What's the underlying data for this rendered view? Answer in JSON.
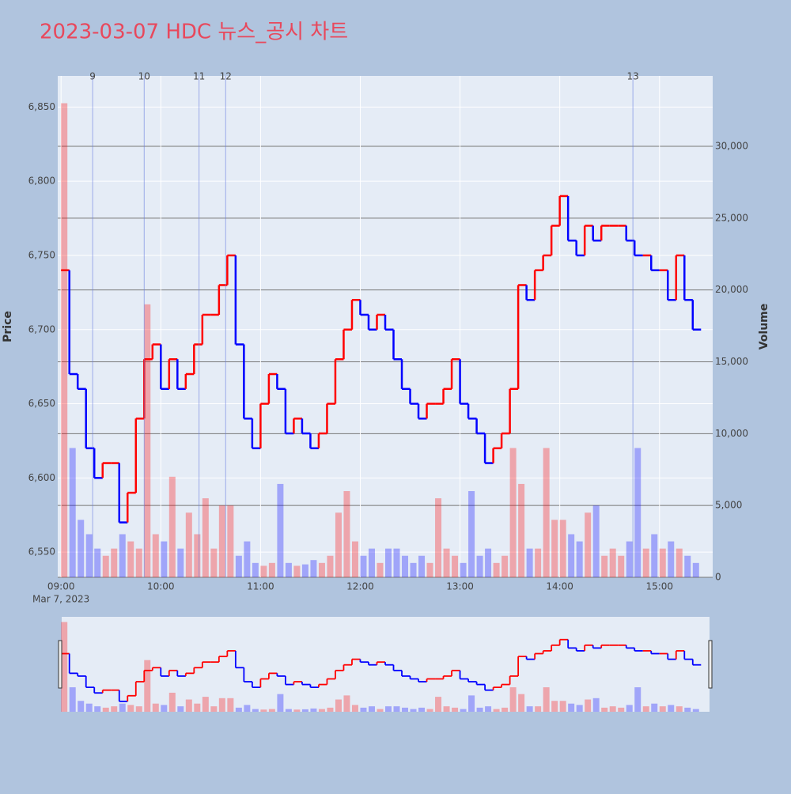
{
  "chart_data": {
    "type": "line",
    "title": "2023-03-07 HDC 뉴스_공시 차트",
    "ylabel": "Price",
    "y2label": "Volume",
    "x": [
      "09:00",
      "09:05",
      "09:10",
      "09:15",
      "09:20",
      "09:25",
      "09:30",
      "09:35",
      "09:40",
      "09:45",
      "09:50",
      "09:55",
      "10:00",
      "10:05",
      "10:10",
      "10:15",
      "10:20",
      "10:25",
      "10:30",
      "10:35",
      "10:40",
      "10:45",
      "10:50",
      "10:55",
      "11:00",
      "11:05",
      "11:10",
      "11:15",
      "11:20",
      "11:25",
      "11:30",
      "11:35",
      "11:40",
      "11:45",
      "11:50",
      "11:55",
      "12:00",
      "12:05",
      "12:10",
      "12:15",
      "12:20",
      "12:25",
      "12:30",
      "12:35",
      "12:40",
      "12:45",
      "12:50",
      "12:55",
      "13:00",
      "13:05",
      "13:10",
      "13:15",
      "13:20",
      "13:25",
      "13:30",
      "13:35",
      "13:40",
      "13:45",
      "13:50",
      "13:55",
      "14:00",
      "14:05",
      "14:10",
      "14:15",
      "14:20",
      "14:25",
      "14:30",
      "14:35",
      "14:40",
      "14:45",
      "14:50",
      "14:55",
      "15:00",
      "15:05",
      "15:10",
      "15:15",
      "15:20"
    ],
    "series": [
      {
        "axis": "y",
        "values": [
          6740,
          6670,
          6660,
          6620,
          6600,
          6610,
          6610,
          6570,
          6590,
          6640,
          6680,
          6690,
          6660,
          6680,
          6660,
          6670,
          6690,
          6710,
          6710,
          6730,
          6750,
          6690,
          6640,
          6620,
          6650,
          6670,
          6660,
          6630,
          6640,
          6630,
          6620,
          6630,
          6650,
          6680,
          6700,
          6720,
          6710,
          6700,
          6710,
          6700,
          6680,
          6660,
          6650,
          6640,
          6650,
          6650,
          6660,
          6680,
          6650,
          6640,
          6630,
          6610,
          6620,
          6630,
          6660,
          6730,
          6720,
          6740,
          6750,
          6770,
          6790,
          6760,
          6750,
          6770,
          6760,
          6770,
          6770,
          6770,
          6760,
          6750,
          6750,
          6740,
          6740,
          6720,
          6750,
          6720,
          6700
        ]
      },
      {
        "axis": "y2",
        "values": [
          33000,
          9000,
          4000,
          3000,
          2000,
          1500,
          2000,
          3000,
          2500,
          2000,
          19000,
          3000,
          2500,
          7000,
          2000,
          4500,
          3000,
          5500,
          2000,
          5000,
          5000,
          1500,
          2500,
          1000,
          800,
          1000,
          6500,
          1000,
          800,
          900,
          1200,
          1000,
          1500,
          4500,
          6000,
          2500,
          1500,
          2000,
          1000,
          2000,
          2000,
          1500,
          1000,
          1500,
          1000,
          5500,
          2000,
          1500,
          1000,
          6000,
          1500,
          2000,
          1000,
          1500,
          9000,
          6500,
          2000,
          2000,
          9000,
          4000,
          4000,
          3000,
          2500,
          4500,
          5000,
          1500,
          2000,
          1500,
          2500,
          9000,
          2000,
          3000,
          2000,
          2500,
          2000,
          1500,
          1000
        ]
      }
    ],
    "up_color": "#ff0000",
    "down_color": "#0000ff",
    "xlim": [
      "08:58",
      "15:32"
    ],
    "xticks": [
      "09:00",
      "10:00",
      "11:00",
      "12:00",
      "13:00",
      "14:00",
      "15:00"
    ],
    "xtick_sublabel": "Mar 7, 2023",
    "ylim": [
      6533,
      6871
    ],
    "yticks": [
      {
        "value": 6550,
        "label": "6,550"
      },
      {
        "value": 6600,
        "label": "6,600"
      },
      {
        "value": 6650,
        "label": "6,650"
      },
      {
        "value": 6700,
        "label": "6,700"
      },
      {
        "value": 6750,
        "label": "6,750"
      },
      {
        "value": 6800,
        "label": "6,800"
      },
      {
        "value": 6850,
        "label": "6,850"
      }
    ],
    "y2lim": [
      0,
      34900
    ],
    "y2ticks": [
      0,
      {
        "value": 5000,
        "label": "5,000"
      },
      {
        "value": 10000,
        "label": "10,000"
      },
      {
        "value": 15000,
        "label": "15,000"
      },
      {
        "value": 20000,
        "label": "20,000"
      },
      {
        "value": 25000,
        "label": "25,000"
      },
      {
        "value": 30000,
        "label": "30,000"
      }
    ],
    "news": [
      {
        "x": "09:19",
        "label": "9"
      },
      {
        "x": "09:50",
        "label": "10"
      },
      {
        "x": "10:23",
        "label": "11"
      },
      {
        "x": "10:39",
        "label": "12"
      },
      {
        "x": "14:44",
        "label": "13"
      }
    ],
    "grid": true
  }
}
